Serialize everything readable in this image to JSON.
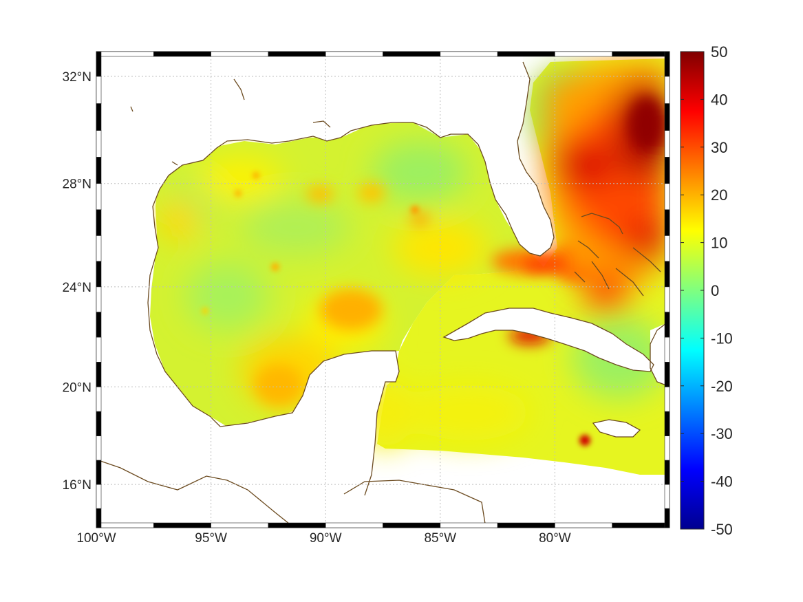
{
  "map": {
    "projection": "mercator",
    "lon_range": [
      -100,
      -75
    ],
    "lat_range": [
      14.2,
      32.9
    ],
    "lon_ticks": [
      {
        "value": -100,
        "label": "100°W"
      },
      {
        "value": -95,
        "label": "95°W"
      },
      {
        "value": -90,
        "label": "90°W"
      },
      {
        "value": -85,
        "label": "85°W"
      },
      {
        "value": -80,
        "label": "80°W"
      }
    ],
    "lat_ticks": [
      {
        "value": 16,
        "label": "16°N"
      },
      {
        "value": 20,
        "label": "20°N"
      },
      {
        "value": 24,
        "label": "24°N"
      },
      {
        "value": 28,
        "label": "28°N"
      },
      {
        "value": 32,
        "label": "32°N"
      }
    ],
    "grid": "dotted",
    "frame": "black-white checkered",
    "coastline_color": "#6b4a1f",
    "field_summary": "gridded values over Gulf of Mexico, Caribbean and W Atlantic; mostly 5-15, highs of 30-50 east of Florida and off NW Cuba",
    "land_color": "#ffffff"
  },
  "colorbar": {
    "colormap": "jet",
    "min": -50,
    "max": 50,
    "ticks": [
      {
        "value": 50,
        "label": "50"
      },
      {
        "value": 40,
        "label": "40"
      },
      {
        "value": 30,
        "label": "30"
      },
      {
        "value": 20,
        "label": "20"
      },
      {
        "value": 10,
        "label": "10"
      },
      {
        "value": 0,
        "label": "0"
      },
      {
        "value": -10,
        "label": "-10"
      },
      {
        "value": -20,
        "label": "-20"
      },
      {
        "value": -30,
        "label": "-30"
      },
      {
        "value": -40,
        "label": "-40"
      },
      {
        "value": -50,
        "label": "-50"
      }
    ]
  }
}
